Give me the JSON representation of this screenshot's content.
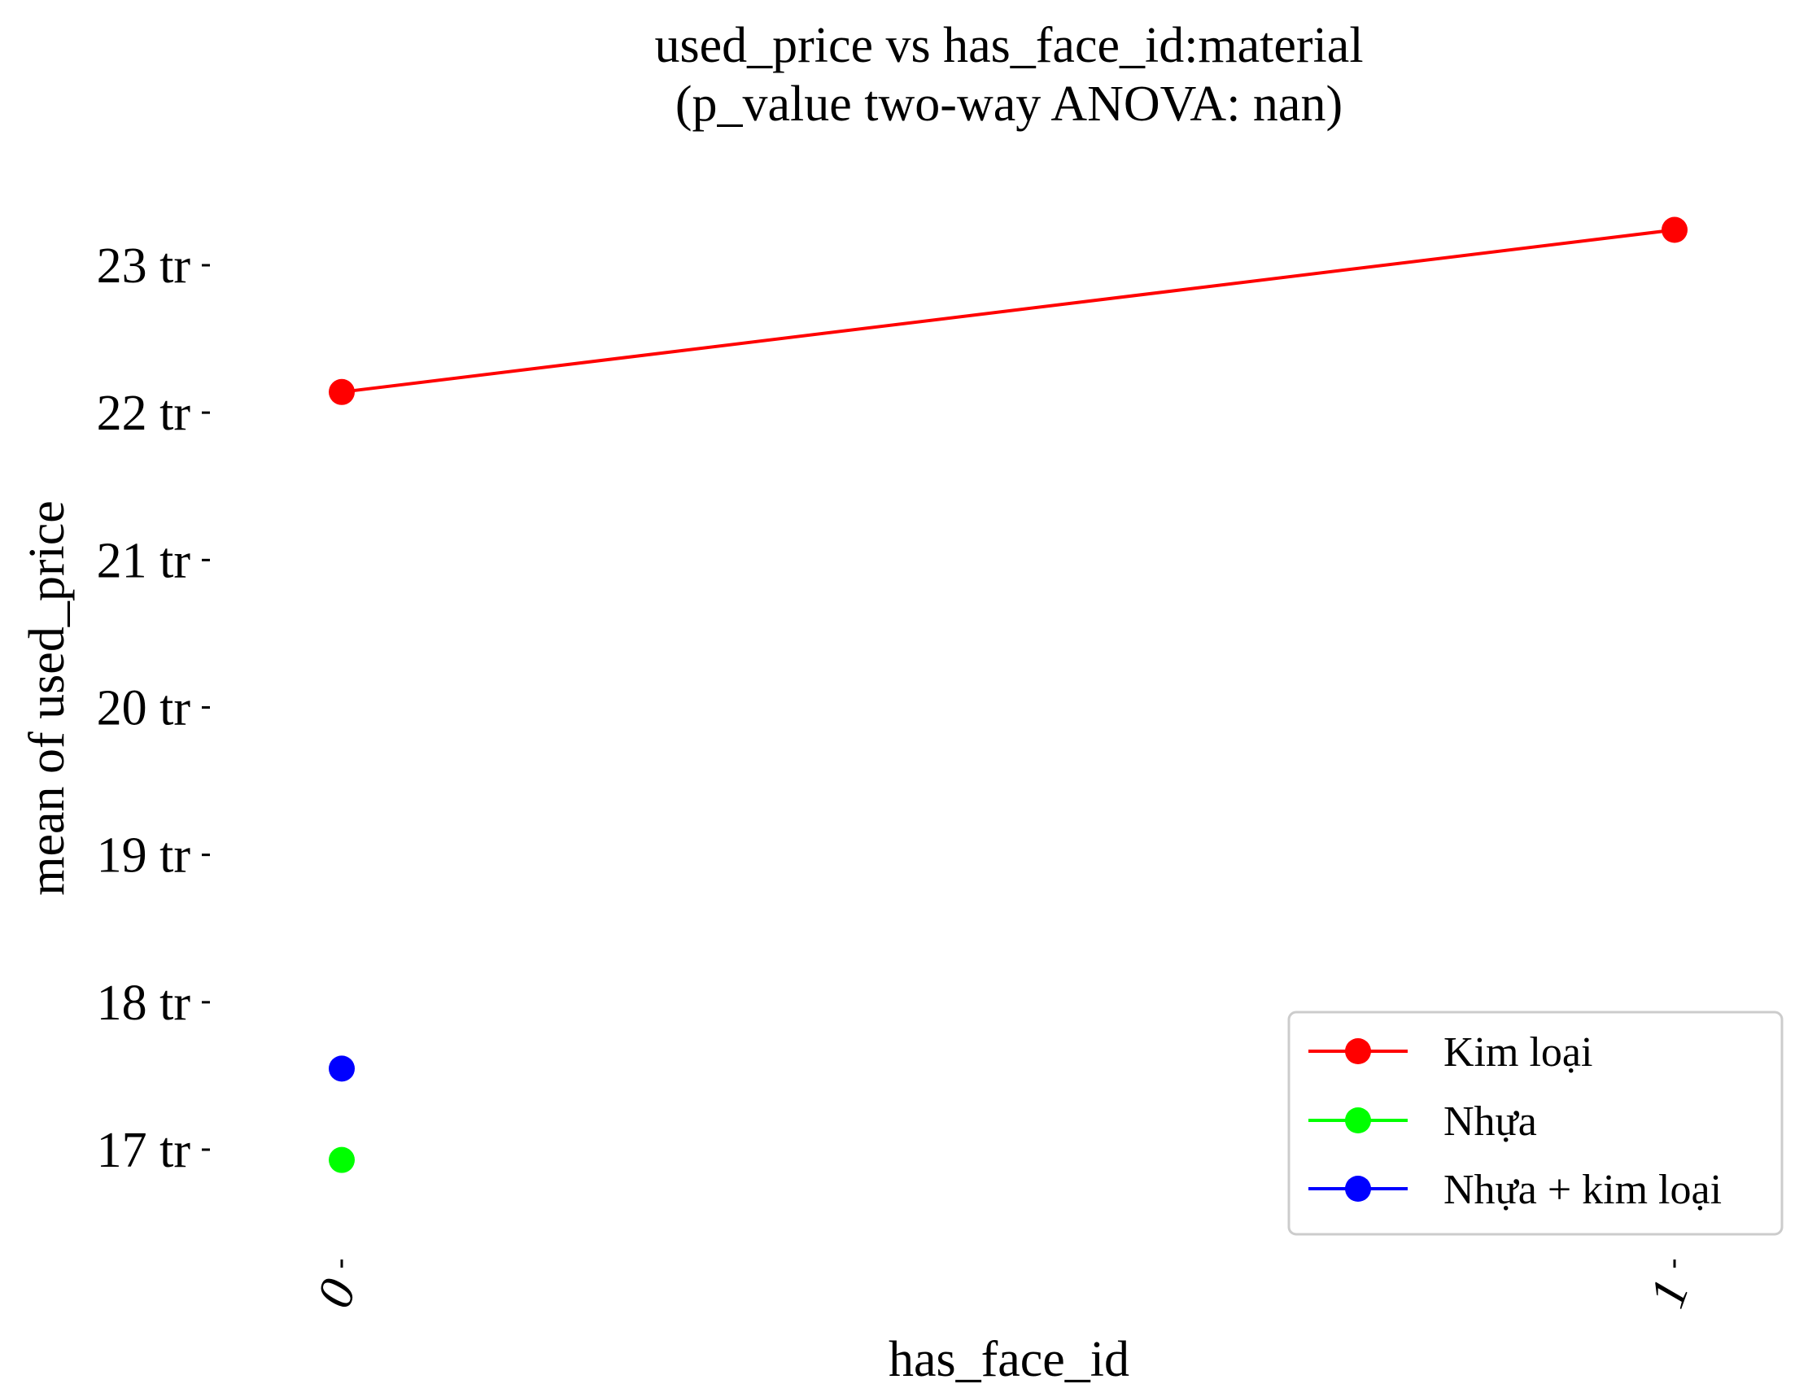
{
  "chart_data": {
    "type": "line",
    "title": "used_price vs has_face_id:material",
    "subtitle": "(p_value two-way ANOVA: nan)",
    "xlabel": "has_face_id",
    "ylabel": "mean of used_price",
    "categories": [
      "0",
      "1"
    ],
    "y_ticks": [
      {
        "value": 17,
        "label": "17 tr"
      },
      {
        "value": 18,
        "label": "18 tr"
      },
      {
        "value": 19,
        "label": "19 tr"
      },
      {
        "value": 20,
        "label": "20 tr"
      },
      {
        "value": 21,
        "label": "21 tr"
      },
      {
        "value": 22,
        "label": "22 tr"
      },
      {
        "value": 23,
        "label": "23 tr"
      }
    ],
    "ylim": [
      16.2,
      23.5
    ],
    "grid": false,
    "legend_position": "bottom-right",
    "series": [
      {
        "name": "Kim loại",
        "color": "#ff0000",
        "values": [
          22.14,
          23.24
        ]
      },
      {
        "name": "Nhựa",
        "color": "#00ff00",
        "values": [
          16.93,
          null
        ]
      },
      {
        "name": "Nhựa + kim loại",
        "color": "#0000ff",
        "values": [
          17.55,
          null
        ]
      }
    ]
  }
}
